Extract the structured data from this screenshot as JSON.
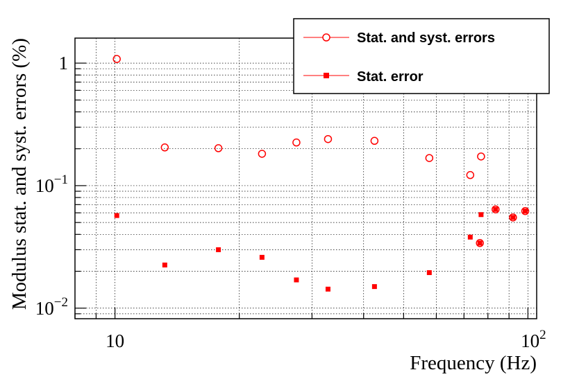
{
  "chart_data": {
    "type": "scatter",
    "xlabel": "Frequency (Hz)",
    "ylabel": "Modulus stat. and syst. errors (%)",
    "xscale": "log",
    "yscale": "log",
    "xlim": [
      8.0,
      105.0
    ],
    "ylim": [
      0.0082,
      1.6
    ],
    "grid": true,
    "legend_position": "top-right",
    "x_ticks": [
      {
        "value": 10,
        "base": "10",
        "exp": ""
      },
      {
        "value": 100,
        "base": "10",
        "exp": "2"
      }
    ],
    "y_ticks": [
      {
        "value": 1,
        "base": "1",
        "exp": ""
      },
      {
        "value": 0.1,
        "base": "10",
        "exp": "−1"
      },
      {
        "value": 0.01,
        "base": "10",
        "exp": "−2"
      }
    ],
    "series": [
      {
        "name": "Stat. and syst. errors",
        "marker": "open-circle",
        "color": "#ff0000",
        "points": [
          {
            "x": 10.1,
            "y": 1.08
          },
          {
            "x": 13.2,
            "y": 0.205
          },
          {
            "x": 17.8,
            "y": 0.202
          },
          {
            "x": 22.7,
            "y": 0.182
          },
          {
            "x": 27.5,
            "y": 0.225
          },
          {
            "x": 32.8,
            "y": 0.24
          },
          {
            "x": 42.5,
            "y": 0.232
          },
          {
            "x": 57.7,
            "y": 0.168
          },
          {
            "x": 72.5,
            "y": 0.122
          },
          {
            "x": 77.0,
            "y": 0.173
          },
          {
            "x": 76.5,
            "y": 0.034
          },
          {
            "x": 83.5,
            "y": 0.064
          },
          {
            "x": 92.0,
            "y": 0.055
          },
          {
            "x": 98.5,
            "y": 0.062
          }
        ]
      },
      {
        "name": "Stat. error",
        "marker": "filled-square",
        "color": "#ff0000",
        "points": [
          {
            "x": 10.1,
            "y": 0.057
          },
          {
            "x": 13.2,
            "y": 0.0225
          },
          {
            "x": 17.8,
            "y": 0.03
          },
          {
            "x": 22.7,
            "y": 0.026
          },
          {
            "x": 27.5,
            "y": 0.017
          },
          {
            "x": 32.8,
            "y": 0.0143
          },
          {
            "x": 42.5,
            "y": 0.015
          },
          {
            "x": 57.7,
            "y": 0.0195
          },
          {
            "x": 72.5,
            "y": 0.038
          },
          {
            "x": 77.0,
            "y": 0.058
          },
          {
            "x": 76.5,
            "y": 0.034
          },
          {
            "x": 83.5,
            "y": 0.064
          },
          {
            "x": 92.0,
            "y": 0.055
          },
          {
            "x": 98.5,
            "y": 0.062
          }
        ]
      }
    ]
  }
}
